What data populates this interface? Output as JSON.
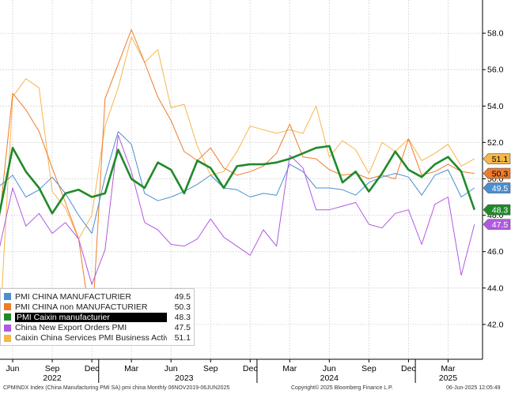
{
  "chart_data": {
    "type": "line",
    "title": "",
    "ylim": [
      40,
      60
    ],
    "y_ticks": [
      "42.0",
      "44.0",
      "46.0",
      "48.0",
      "50.0",
      "52.0",
      "54.0",
      "56.0",
      "58.0"
    ],
    "y_tick_values": [
      42,
      44,
      46,
      48,
      50,
      52,
      54,
      56,
      58
    ],
    "x_ticks": [
      {
        "label": "Jun",
        "date": "2022-06"
      },
      {
        "label": "Sep",
        "date": "2022-09"
      },
      {
        "label": "Dec",
        "date": "2022-12"
      },
      {
        "label": "Mar",
        "date": "2023-03"
      },
      {
        "label": "Jun",
        "date": "2023-06"
      },
      {
        "label": "Sep",
        "date": "2023-09"
      },
      {
        "label": "Dec",
        "date": "2023-12"
      },
      {
        "label": "Mar",
        "date": "2024-03"
      },
      {
        "label": "Jun",
        "date": "2024-06"
      },
      {
        "label": "Sep",
        "date": "2024-09"
      },
      {
        "label": "Dec",
        "date": "2024-12"
      },
      {
        "label": "Mar",
        "date": "2025-03"
      }
    ],
    "year_labels": [
      {
        "label": "2022",
        "date": "2022-09"
      },
      {
        "label": "2023",
        "date": "2023-07"
      },
      {
        "label": "2024",
        "date": "2024-06"
      },
      {
        "label": "2025",
        "date": "2025-03"
      }
    ],
    "x": [
      "2022-05",
      "2022-06",
      "2022-07",
      "2022-08",
      "2022-09",
      "2022-10",
      "2022-11",
      "2022-12",
      "2023-01",
      "2023-02",
      "2023-03",
      "2023-04",
      "2023-05",
      "2023-06",
      "2023-07",
      "2023-08",
      "2023-09",
      "2023-10",
      "2023-11",
      "2023-12",
      "2024-01",
      "2024-02",
      "2024-03",
      "2024-04",
      "2024-05",
      "2024-06",
      "2024-07",
      "2024-08",
      "2024-09",
      "2024-10",
      "2024-11",
      "2024-12",
      "2025-01",
      "2025-02",
      "2025-03",
      "2025-04",
      "2025-05"
    ],
    "series": [
      {
        "name": "PMI CHINA MANUFACTURIER",
        "value_label": "49.5",
        "last": 49.5,
        "color": "#4a8fd0",
        "width": 1,
        "values": [
          49.6,
          50.2,
          49.0,
          49.4,
          50.1,
          49.2,
          48.0,
          47.0,
          50.1,
          52.6,
          51.9,
          49.2,
          48.8,
          49.0,
          49.3,
          49.7,
          50.2,
          49.5,
          49.4,
          49.0,
          49.2,
          49.1,
          50.8,
          50.4,
          49.5,
          49.5,
          49.4,
          49.1,
          49.8,
          50.1,
          50.3,
          50.1,
          49.1,
          50.2,
          50.5,
          49.0,
          49.5
        ]
      },
      {
        "name": "PMI CHINA non MANUFACTURIER",
        "value_label": "50.3",
        "last": 50.3,
        "color": "#ee7b2c",
        "width": 1,
        "values": [
          47.8,
          54.7,
          53.8,
          52.6,
          50.6,
          48.7,
          46.7,
          41.6,
          54.4,
          56.3,
          58.2,
          56.4,
          54.5,
          53.2,
          51.5,
          51.0,
          51.7,
          50.6,
          50.2,
          50.4,
          50.7,
          51.4,
          53.0,
          51.2,
          51.1,
          50.5,
          50.2,
          50.3,
          50.0,
          50.2,
          50.0,
          52.2,
          50.2,
          50.4,
          50.8,
          50.4,
          50.3
        ]
      },
      {
        "name": "PMI Caixin manufacturier",
        "value_label": "48.3",
        "last": 48.3,
        "color": "#1f8a2a",
        "width": 2.6,
        "values": [
          48.1,
          51.7,
          50.4,
          49.5,
          48.1,
          49.2,
          49.4,
          49.0,
          49.2,
          51.6,
          50.0,
          49.5,
          50.9,
          50.5,
          49.2,
          51.0,
          50.6,
          49.5,
          50.7,
          50.8,
          50.8,
          50.9,
          51.1,
          51.4,
          51.7,
          51.8,
          49.8,
          50.4,
          49.3,
          50.3,
          51.5,
          50.5,
          50.1,
          50.8,
          51.2,
          50.4,
          48.3
        ]
      },
      {
        "name": "China New Export Orders PMI",
        "value_label": "47.5",
        "last": 47.5,
        "color": "#b05ae0",
        "width": 1,
        "values": [
          46.2,
          49.5,
          47.4,
          48.1,
          47.0,
          47.6,
          46.7,
          44.2,
          46.1,
          52.4,
          50.4,
          47.6,
          47.2,
          46.4,
          46.3,
          46.7,
          47.8,
          46.8,
          46.3,
          45.8,
          47.2,
          46.3,
          51.3,
          50.6,
          48.3,
          48.3,
          48.5,
          48.7,
          47.5,
          47.3,
          48.1,
          48.3,
          46.4,
          48.6,
          49.0,
          44.7,
          47.5
        ]
      },
      {
        "name": "Caixin China Services PMI Business Activity",
        "value_label": "51.1",
        "last": 51.1,
        "color": "#f6b64a",
        "width": 1,
        "values": [
          41.4,
          54.5,
          55.5,
          55.0,
          49.3,
          48.4,
          46.7,
          48.0,
          52.9,
          55.0,
          57.8,
          56.4,
          57.1,
          53.9,
          54.1,
          51.8,
          50.2,
          50.4,
          51.5,
          52.9,
          52.7,
          52.5,
          52.7,
          52.5,
          54.0,
          51.2,
          52.1,
          51.6,
          50.3,
          52.0,
          51.5,
          52.2,
          51.0,
          51.4,
          51.9,
          50.7,
          51.1
        ]
      }
    ]
  },
  "footer": {
    "left": "CPMINDX Index (China Manufacturing PMI SA) pmi china  Monthly 06NOV2019-06JUN2025",
    "center": "Copyright© 2025 Bloomberg Finance L.P.",
    "right": "06-Jun-2025 12:05:49"
  },
  "colors": {
    "grid": "#c9c9c9",
    "axis": "#000000",
    "background": "#ffffff"
  }
}
